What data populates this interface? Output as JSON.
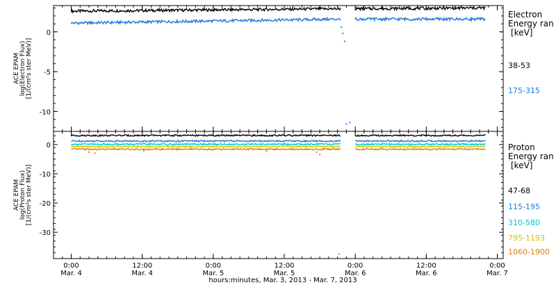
{
  "chart_data": [
    {
      "type": "scatter",
      "panel": "electron",
      "ylabel_lines": [
        "ACE EPAM",
        "log(Electron Flux)",
        "[1/(cm²s ster MeV)]"
      ],
      "ylim": [
        -12.5,
        3.3
      ],
      "yticks": [
        0,
        -5,
        -10
      ],
      "legend": {
        "heading_lines": [
          "Electron",
          "Energy ran",
          "[keV]"
        ],
        "placement": "right"
      },
      "series": [
        {
          "name": "38-53",
          "color": "#000000",
          "segments": [
            {
              "x": [
                0,
                91
              ],
              "y": [
                2.6,
                2.9
              ]
            },
            {
              "x": [
                96,
                140
              ],
              "y": [
                2.9,
                3.0
              ]
            }
          ]
        },
        {
          "name": "175-315",
          "color": "#1f78d8",
          "segments": [
            {
              "x": [
                0,
                91
              ],
              "y": [
                1.1,
                1.6
              ]
            },
            {
              "x": [
                96,
                140
              ],
              "y": [
                1.6,
                1.6
              ]
            }
          ],
          "scatter": [
            [
              91.3,
              0.6
            ],
            [
              91.8,
              -0.2
            ],
            [
              92.4,
              -1.2
            ],
            [
              93.0,
              -11.6
            ],
            [
              94.2,
              -11.4
            ]
          ]
        }
      ]
    },
    {
      "type": "scatter",
      "panel": "proton",
      "ylabel_lines": [
        "ACE EPAM",
        "log(Proton Flux)",
        "[1/(cm²s ster MeV)]"
      ],
      "ylim": [
        -39,
        4.5
      ],
      "yticks": [
        0,
        -10,
        -20,
        -30
      ],
      "xlim": [
        -6,
        146
      ],
      "xticks": [
        {
          "x": 0,
          "label": "0:00",
          "sub": "Mar. 4"
        },
        {
          "x": 24,
          "label": "12:00",
          "sub": "Mar. 4"
        },
        {
          "x": 48,
          "label": "0:00",
          "sub": "Mar. 5"
        },
        {
          "x": 72,
          "label": "12:00",
          "sub": "Mar. 5"
        },
        {
          "x": 96,
          "label": "0:00",
          "sub": "Mar. 6"
        },
        {
          "x": 120,
          "label": "12:00",
          "sub": "Mar. 6"
        },
        {
          "x": 144,
          "label": "0:00",
          "sub": "Mar. 7"
        }
      ],
      "xlabel": "hours:minutes, Mar. 3, 2013 - Mar. 7, 2013",
      "legend": {
        "heading_lines": [
          "Proton",
          "Energy ran",
          "[keV]"
        ],
        "placement": "right"
      },
      "series": [
        {
          "name": "47-68",
          "color": "#000000",
          "segments": [
            {
              "x": [
                0,
                91
              ],
              "y": [
                3.1,
                3.1
              ]
            },
            {
              "x": [
                96,
                140
              ],
              "y": [
                3.1,
                3.1
              ]
            }
          ]
        },
        {
          "name": "115-195",
          "color": "#1f78d8",
          "segments": [
            {
              "x": [
                0,
                91
              ],
              "y": [
                1.2,
                1.2
              ]
            },
            {
              "x": [
                96,
                140
              ],
              "y": [
                1.2,
                1.2
              ]
            }
          ]
        },
        {
          "name": "310-580",
          "color": "#00c8c8",
          "segments": [
            {
              "x": [
                0,
                91
              ],
              "y": [
                0.1,
                0.1
              ]
            },
            {
              "x": [
                96,
                140
              ],
              "y": [
                0.1,
                0.1
              ]
            }
          ]
        },
        {
          "name": "795-1193",
          "color": "#c8c800",
          "segments": [
            {
              "x": [
                0,
                91
              ],
              "y": [
                -0.7,
                -0.7
              ]
            },
            {
              "x": [
                96,
                140
              ],
              "y": [
                -0.7,
                -0.7
              ]
            }
          ]
        },
        {
          "name": "1060-1900",
          "color": "#e08000",
          "segments": [
            {
              "x": [
                0,
                91
              ],
              "y": [
                -1.6,
                -1.6
              ]
            },
            {
              "x": [
                96,
                140
              ],
              "y": [
                -1.6,
                -1.6
              ]
            }
          ],
          "scatter": [
            [
              6,
              -2.6
            ],
            [
              8,
              -2.9
            ],
            [
              24.5,
              -2.1
            ],
            [
              66,
              -2.3
            ],
            [
              83,
              -2.6
            ],
            [
              84,
              -3.4
            ],
            [
              90.5,
              -37.5
            ]
          ]
        }
      ]
    }
  ]
}
